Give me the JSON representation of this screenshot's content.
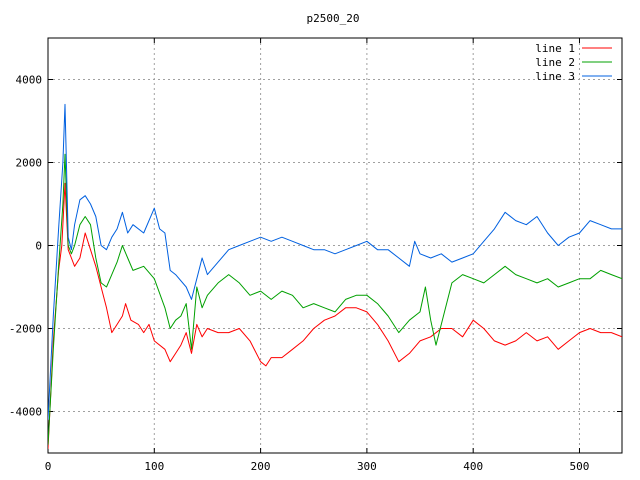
{
  "chart_data": {
    "type": "line",
    "title": "p2500_20",
    "xlabel": "",
    "ylabel": "",
    "xlim": [
      0,
      540
    ],
    "ylim": [
      -5000,
      5000
    ],
    "x_ticks": [
      0,
      100,
      200,
      300,
      400,
      500
    ],
    "y_ticks": [
      -4000,
      -2000,
      0,
      2000,
      4000
    ],
    "grid": true,
    "legend_position": "top-right",
    "series": [
      {
        "name": "line 1",
        "color": "#ff0000",
        "points": [
          [
            0,
            -4900
          ],
          [
            5,
            -2300
          ],
          [
            10,
            -600
          ],
          [
            13,
            0
          ],
          [
            16,
            1500
          ],
          [
            19,
            -100
          ],
          [
            22,
            -300
          ],
          [
            25,
            -500
          ],
          [
            30,
            -300
          ],
          [
            35,
            300
          ],
          [
            40,
            -100
          ],
          [
            45,
            -500
          ],
          [
            50,
            -1000
          ],
          [
            55,
            -1500
          ],
          [
            60,
            -2100
          ],
          [
            65,
            -1900
          ],
          [
            70,
            -1700
          ],
          [
            73,
            -1400
          ],
          [
            78,
            -1800
          ],
          [
            85,
            -1900
          ],
          [
            90,
            -2100
          ],
          [
            95,
            -1900
          ],
          [
            100,
            -2300
          ],
          [
            110,
            -2500
          ],
          [
            115,
            -2800
          ],
          [
            120,
            -2600
          ],
          [
            125,
            -2400
          ],
          [
            130,
            -2100
          ],
          [
            135,
            -2600
          ],
          [
            140,
            -1900
          ],
          [
            145,
            -2200
          ],
          [
            150,
            -2000
          ],
          [
            160,
            -2100
          ],
          [
            170,
            -2100
          ],
          [
            180,
            -2000
          ],
          [
            190,
            -2300
          ],
          [
            200,
            -2800
          ],
          [
            205,
            -2900
          ],
          [
            210,
            -2700
          ],
          [
            220,
            -2700
          ],
          [
            230,
            -2500
          ],
          [
            240,
            -2300
          ],
          [
            250,
            -2000
          ],
          [
            260,
            -1800
          ],
          [
            270,
            -1700
          ],
          [
            280,
            -1500
          ],
          [
            290,
            -1500
          ],
          [
            300,
            -1600
          ],
          [
            310,
            -1900
          ],
          [
            320,
            -2300
          ],
          [
            330,
            -2800
          ],
          [
            340,
            -2600
          ],
          [
            350,
            -2300
          ],
          [
            360,
            -2200
          ],
          [
            370,
            -2000
          ],
          [
            380,
            -2000
          ],
          [
            390,
            -2200
          ],
          [
            400,
            -1800
          ],
          [
            410,
            -2000
          ],
          [
            420,
            -2300
          ],
          [
            430,
            -2400
          ],
          [
            440,
            -2300
          ],
          [
            450,
            -2100
          ],
          [
            460,
            -2300
          ],
          [
            470,
            -2200
          ],
          [
            480,
            -2500
          ],
          [
            490,
            -2300
          ],
          [
            500,
            -2100
          ],
          [
            510,
            -2000
          ],
          [
            520,
            -2100
          ],
          [
            530,
            -2100
          ],
          [
            540,
            -2200
          ]
        ]
      },
      {
        "name": "line 2",
        "color": "#00a000",
        "points": [
          [
            0,
            -4800
          ],
          [
            5,
            -2500
          ],
          [
            10,
            -500
          ],
          [
            14,
            1000
          ],
          [
            16,
            2200
          ],
          [
            19,
            0
          ],
          [
            22,
            -200
          ],
          [
            25,
            0
          ],
          [
            30,
            500
          ],
          [
            35,
            700
          ],
          [
            40,
            500
          ],
          [
            45,
            -300
          ],
          [
            50,
            -900
          ],
          [
            55,
            -1000
          ],
          [
            60,
            -700
          ],
          [
            65,
            -400
          ],
          [
            70,
            0
          ],
          [
            75,
            -300
          ],
          [
            80,
            -600
          ],
          [
            90,
            -500
          ],
          [
            100,
            -800
          ],
          [
            110,
            -1500
          ],
          [
            115,
            -2000
          ],
          [
            120,
            -1800
          ],
          [
            125,
            -1700
          ],
          [
            130,
            -1400
          ],
          [
            135,
            -2500
          ],
          [
            140,
            -1000
          ],
          [
            145,
            -1500
          ],
          [
            150,
            -1200
          ],
          [
            160,
            -900
          ],
          [
            170,
            -700
          ],
          [
            180,
            -900
          ],
          [
            190,
            -1200
          ],
          [
            200,
            -1100
          ],
          [
            210,
            -1300
          ],
          [
            220,
            -1100
          ],
          [
            230,
            -1200
          ],
          [
            240,
            -1500
          ],
          [
            250,
            -1400
          ],
          [
            260,
            -1500
          ],
          [
            270,
            -1600
          ],
          [
            280,
            -1300
          ],
          [
            290,
            -1200
          ],
          [
            300,
            -1200
          ],
          [
            310,
            -1400
          ],
          [
            320,
            -1700
          ],
          [
            330,
            -2100
          ],
          [
            340,
            -1800
          ],
          [
            350,
            -1600
          ],
          [
            355,
            -1000
          ],
          [
            360,
            -1800
          ],
          [
            365,
            -2400
          ],
          [
            370,
            -1900
          ],
          [
            380,
            -900
          ],
          [
            390,
            -700
          ],
          [
            400,
            -800
          ],
          [
            410,
            -900
          ],
          [
            420,
            -700
          ],
          [
            430,
            -500
          ],
          [
            440,
            -700
          ],
          [
            450,
            -800
          ],
          [
            460,
            -900
          ],
          [
            470,
            -800
          ],
          [
            480,
            -1000
          ],
          [
            490,
            -900
          ],
          [
            500,
            -800
          ],
          [
            510,
            -800
          ],
          [
            520,
            -600
          ],
          [
            530,
            -700
          ],
          [
            540,
            -800
          ]
        ]
      },
      {
        "name": "line 3",
        "color": "#0060e0",
        "points": [
          [
            0,
            -4200
          ],
          [
            5,
            -1700
          ],
          [
            10,
            400
          ],
          [
            14,
            2000
          ],
          [
            16,
            3400
          ],
          [
            19,
            200
          ],
          [
            22,
            -100
          ],
          [
            25,
            500
          ],
          [
            30,
            1100
          ],
          [
            35,
            1200
          ],
          [
            40,
            1000
          ],
          [
            45,
            700
          ],
          [
            50,
            0
          ],
          [
            55,
            -100
          ],
          [
            60,
            200
          ],
          [
            65,
            400
          ],
          [
            70,
            800
          ],
          [
            75,
            300
          ],
          [
            80,
            500
          ],
          [
            90,
            300
          ],
          [
            100,
            900
          ],
          [
            105,
            400
          ],
          [
            110,
            300
          ],
          [
            115,
            -600
          ],
          [
            120,
            -700
          ],
          [
            130,
            -1000
          ],
          [
            135,
            -1300
          ],
          [
            140,
            -800
          ],
          [
            145,
            -300
          ],
          [
            150,
            -700
          ],
          [
            160,
            -400
          ],
          [
            170,
            -100
          ],
          [
            180,
            0
          ],
          [
            190,
            100
          ],
          [
            200,
            200
          ],
          [
            210,
            100
          ],
          [
            220,
            200
          ],
          [
            230,
            100
          ],
          [
            240,
            0
          ],
          [
            250,
            -100
          ],
          [
            260,
            -100
          ],
          [
            270,
            -200
          ],
          [
            280,
            -100
          ],
          [
            290,
            0
          ],
          [
            300,
            100
          ],
          [
            310,
            -100
          ],
          [
            320,
            -100
          ],
          [
            330,
            -300
          ],
          [
            340,
            -500
          ],
          [
            345,
            100
          ],
          [
            350,
            -200
          ],
          [
            360,
            -300
          ],
          [
            370,
            -200
          ],
          [
            380,
            -400
          ],
          [
            390,
            -300
          ],
          [
            400,
            -200
          ],
          [
            410,
            100
          ],
          [
            420,
            400
          ],
          [
            430,
            800
          ],
          [
            440,
            600
          ],
          [
            450,
            500
          ],
          [
            460,
            700
          ],
          [
            470,
            300
          ],
          [
            480,
            0
          ],
          [
            490,
            200
          ],
          [
            500,
            300
          ],
          [
            510,
            600
          ],
          [
            520,
            500
          ],
          [
            530,
            400
          ],
          [
            540,
            400
          ]
        ]
      }
    ]
  }
}
